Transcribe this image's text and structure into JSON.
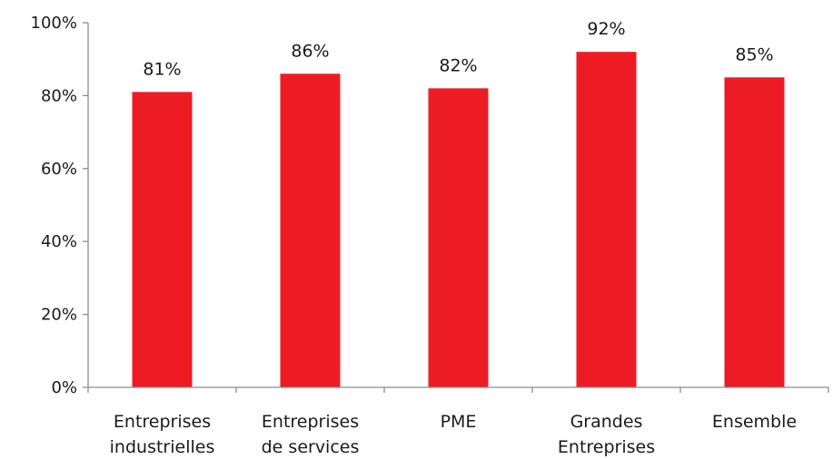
{
  "chart_data": {
    "type": "bar",
    "categories": [
      [
        "Entreprises",
        "industrielles"
      ],
      [
        "Entreprises",
        "de services"
      ],
      [
        "PME"
      ],
      [
        "Grandes",
        "Entreprises"
      ],
      [
        "Ensemble"
      ]
    ],
    "values": [
      81,
      86,
      82,
      92,
      85
    ],
    "data_labels": [
      "81%",
      "86%",
      "82%",
      "92%",
      "85%"
    ],
    "ylim": [
      0,
      100
    ],
    "yticks": [
      0,
      20,
      40,
      60,
      80,
      100
    ],
    "ytick_labels": [
      "0%",
      "20%",
      "40%",
      "60%",
      "80%",
      "100%"
    ],
    "title": "",
    "xlabel": "",
    "ylabel": "",
    "grid": false,
    "legend": false,
    "bar_color": "#ed1c24"
  }
}
